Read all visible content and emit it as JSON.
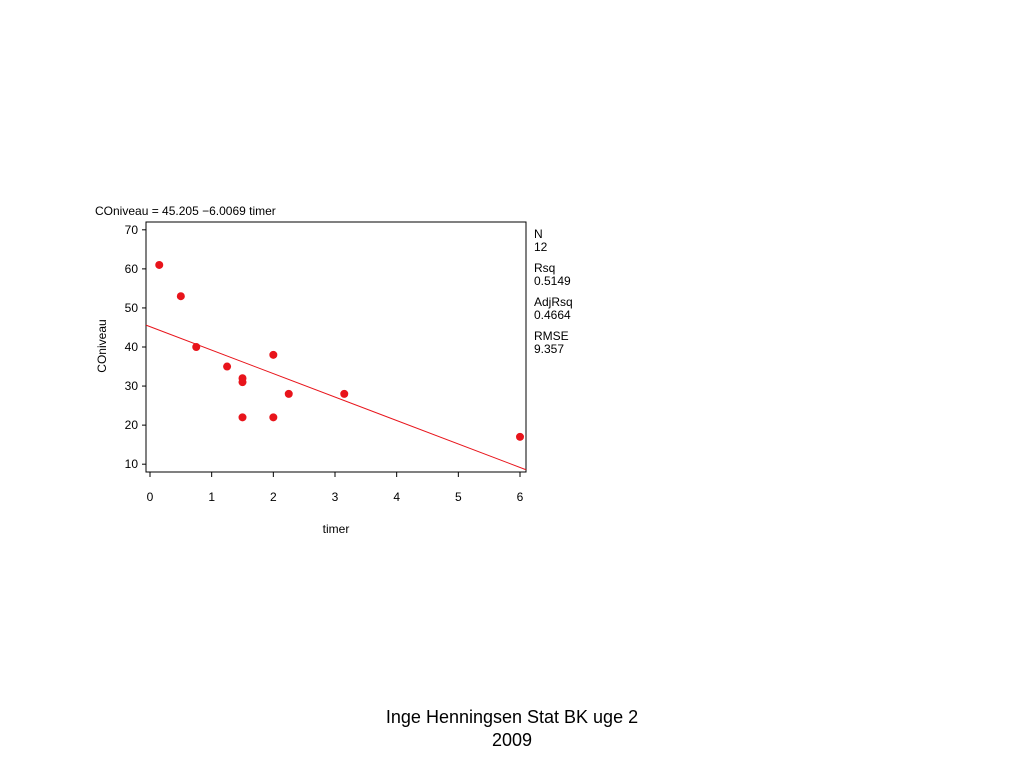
{
  "chart_data": {
    "type": "scatter",
    "title": "COniveau  =  45.205  −6.0069 timer",
    "xlabel": "timer",
    "ylabel": "COniveau",
    "xlim": [
      0,
      6
    ],
    "ylim": [
      8,
      72
    ],
    "xticks": [
      "0",
      "1",
      "2",
      "3",
      "4",
      "5",
      "6"
    ],
    "yticks": [
      "70",
      "60",
      "50",
      "40",
      "30",
      "20",
      "10"
    ],
    "points": [
      {
        "x": 0.15,
        "y": 61
      },
      {
        "x": 0.5,
        "y": 53
      },
      {
        "x": 0.75,
        "y": 40
      },
      {
        "x": 1.25,
        "y": 35
      },
      {
        "x": 1.5,
        "y": 32
      },
      {
        "x": 1.5,
        "y": 31
      },
      {
        "x": 1.5,
        "y": 22
      },
      {
        "x": 2.0,
        "y": 38
      },
      {
        "x": 2.0,
        "y": 22
      },
      {
        "x": 2.25,
        "y": 28
      },
      {
        "x": 3.15,
        "y": 28
      },
      {
        "x": 6.0,
        "y": 17
      }
    ],
    "regression": {
      "intercept": 45.205,
      "slope": -6.0069
    },
    "point_color": "#e8141b",
    "line_color": "#e8141b",
    "stats": [
      {
        "label": "N",
        "value": "12"
      },
      {
        "label": "Rsq",
        "value": "0.5149"
      },
      {
        "label": "AdjRsq",
        "value": "0.4664"
      },
      {
        "label": "RMSE",
        "value": "9.357"
      }
    ]
  },
  "footer": {
    "line1": "Inge Henningsen Stat BK uge 2",
    "line2": "2009"
  }
}
